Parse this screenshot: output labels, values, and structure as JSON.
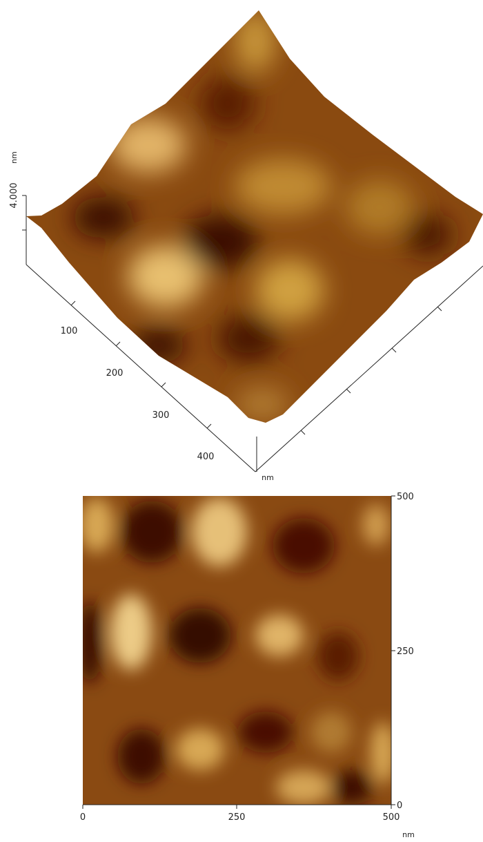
{
  "surface_3d": {
    "z_unit": "nm",
    "z_tick": "4.000",
    "x_ticks": [
      100,
      200,
      300,
      400
    ],
    "x_unit": "nm"
  },
  "height_map": {
    "x_ticks": [
      0,
      250,
      500
    ],
    "y_ticks": [
      0,
      250,
      500
    ],
    "unit": "nm"
  }
}
